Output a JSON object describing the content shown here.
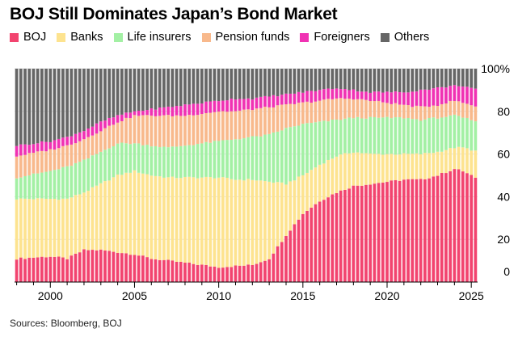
{
  "chart_data": {
    "type": "stacked-bar",
    "title": "BOJ Still Dominates Japan’s Bond Market",
    "source": "Sources: Bloomberg, BOJ",
    "ylim": [
      0,
      100
    ],
    "y_ticks": [
      "0",
      "20",
      "40",
      "60",
      "80",
      "100%"
    ],
    "x_ticks": [
      {
        "label": "2000",
        "quarter": 8
      },
      {
        "label": "2005",
        "quarter": 28
      },
      {
        "label": "2010",
        "quarter": 48
      },
      {
        "label": "2015",
        "quarter": 68
      },
      {
        "label": "2020",
        "quarter": 88
      },
      {
        "label": "2025",
        "quarter": 108
      }
    ],
    "grid": true,
    "legend_position": "top",
    "period": "quarterly, 1998 Q1 – 2025 Q2",
    "series": [
      {
        "name": "BOJ",
        "color": "#f2446f"
      },
      {
        "name": "Banks",
        "color": "#fde38f"
      },
      {
        "name": "Life insurers",
        "color": "#a3f0a4"
      },
      {
        "name": "Pension funds",
        "color": "#f8b98c"
      },
      {
        "name": "Foreigners",
        "color": "#f032b3"
      },
      {
        "name": "Others",
        "color": "#666666"
      }
    ],
    "anchors_cumulative_percent": {
      "quarter_index": [
        0,
        8,
        12,
        16,
        20,
        24,
        28,
        32,
        36,
        40,
        44,
        48,
        52,
        56,
        60,
        64,
        68,
        72,
        76,
        80,
        84,
        88,
        92,
        96,
        100,
        104,
        106,
        108,
        110
      ],
      "BOJ": [
        11,
        12,
        11,
        15,
        15,
        14,
        13,
        11,
        10,
        9,
        8,
        7,
        7.5,
        8,
        11,
        22,
        32,
        38,
        42,
        45,
        46,
        47,
        48,
        48,
        50,
        53,
        52,
        50,
        47
      ],
      "Banks": [
        39,
        39,
        39,
        42,
        46,
        50,
        52,
        50,
        49,
        49,
        49,
        49,
        48,
        48,
        47,
        46,
        50,
        55,
        59,
        61,
        60,
        60,
        60,
        60,
        61,
        63,
        63,
        62,
        61
      ],
      "Life insurers": [
        49,
        52,
        54,
        57,
        61,
        65,
        65,
        64,
        63,
        64,
        65,
        66,
        67,
        68,
        69,
        72,
        74,
        75,
        76,
        77,
        77,
        77,
        77,
        76,
        77,
        78,
        77,
        76,
        74
      ],
      "Pension funds": [
        59,
        62,
        64,
        67,
        71,
        75,
        78,
        78,
        78,
        78,
        79,
        80,
        80,
        81,
        82,
        83,
        84,
        85,
        86,
        86,
        85,
        84,
        83,
        82,
        83,
        85,
        84,
        83,
        82
      ],
      "Foreigners": [
        64,
        66,
        68,
        71,
        75,
        78,
        80,
        81,
        82,
        83,
        84,
        85,
        86,
        86,
        87,
        88,
        89,
        90,
        91,
        90,
        89,
        89,
        89,
        90,
        91,
        92,
        92,
        91,
        90
      ],
      "Others": [
        100,
        100,
        100,
        100,
        100,
        100,
        100,
        100,
        100,
        100,
        100,
        100,
        100,
        100,
        100,
        100,
        100,
        100,
        100,
        100,
        100,
        100,
        100,
        100,
        100,
        100,
        100,
        100,
        100
      ]
    }
  }
}
